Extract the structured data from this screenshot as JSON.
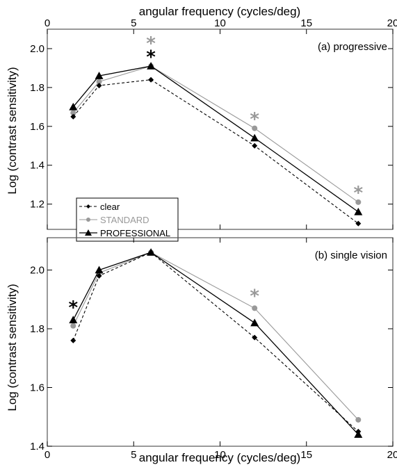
{
  "colors": {
    "clear": "#000000",
    "standard": "#999999",
    "professional": "#000000",
    "frame": "#555555"
  },
  "chart_data": [
    {
      "type": "line",
      "panel_label": "(a) progressive",
      "x_label_top": "angular frequency (cycles/deg)",
      "ylabel": "Log (contrast sensitivity)",
      "xlim": [
        0,
        20
      ],
      "ylim": [
        1.07,
        2.1
      ],
      "xticks": [
        "0",
        "5",
        "10",
        "15",
        "20"
      ],
      "yticks": [
        "1.2",
        "1.4",
        "1.6",
        "1.8",
        "2.0"
      ],
      "x": [
        1.5,
        3,
        6,
        12,
        18
      ],
      "series": [
        {
          "name": "clear",
          "values": [
            1.65,
            1.81,
            1.84,
            1.5,
            1.1
          ]
        },
        {
          "name": "STANDARD",
          "values": [
            1.67,
            1.83,
            1.91,
            1.59,
            1.21
          ]
        },
        {
          "name": "PROFESSIONAL",
          "values": [
            1.7,
            1.86,
            1.91,
            1.54,
            1.16
          ]
        }
      ],
      "annotations": [
        {
          "text": "*",
          "x": 6,
          "y": 2.04,
          "color": "standard"
        },
        {
          "text": "*",
          "x": 6,
          "y": 1.97,
          "color": "professional"
        },
        {
          "text": "*",
          "x": 12,
          "y": 1.65,
          "color": "standard"
        },
        {
          "text": "*",
          "x": 18,
          "y": 1.27,
          "color": "standard"
        }
      ],
      "legend": {
        "position": "bottom-left",
        "entries": [
          "clear",
          "STANDARD",
          "PROFESSIONAL"
        ]
      }
    },
    {
      "type": "line",
      "panel_label": "(b) single vision",
      "xlabel": "angular frequency (cycles/deg)",
      "ylabel": "Log (contrast sensitivity)",
      "xlim": [
        0,
        20
      ],
      "ylim": [
        1.4,
        2.11
      ],
      "xticks": [
        "0",
        "5",
        "10",
        "15",
        "20"
      ],
      "yticks": [
        "1.4",
        "1.6",
        "1.8",
        "2.0"
      ],
      "x": [
        1.5,
        3,
        6,
        12,
        18
      ],
      "series": [
        {
          "name": "clear",
          "values": [
            1.76,
            1.98,
            2.06,
            1.77,
            1.45
          ]
        },
        {
          "name": "STANDARD",
          "values": [
            1.81,
            1.99,
            2.06,
            1.87,
            1.49
          ]
        },
        {
          "name": "PROFESSIONAL",
          "values": [
            1.83,
            2.0,
            2.06,
            1.82,
            1.44
          ]
        }
      ],
      "annotations": [
        {
          "text": "*",
          "x": 12,
          "y": 1.92,
          "color": "standard"
        },
        {
          "text": "*",
          "x": 1.5,
          "y": 1.88,
          "color": "professional"
        }
      ]
    }
  ]
}
